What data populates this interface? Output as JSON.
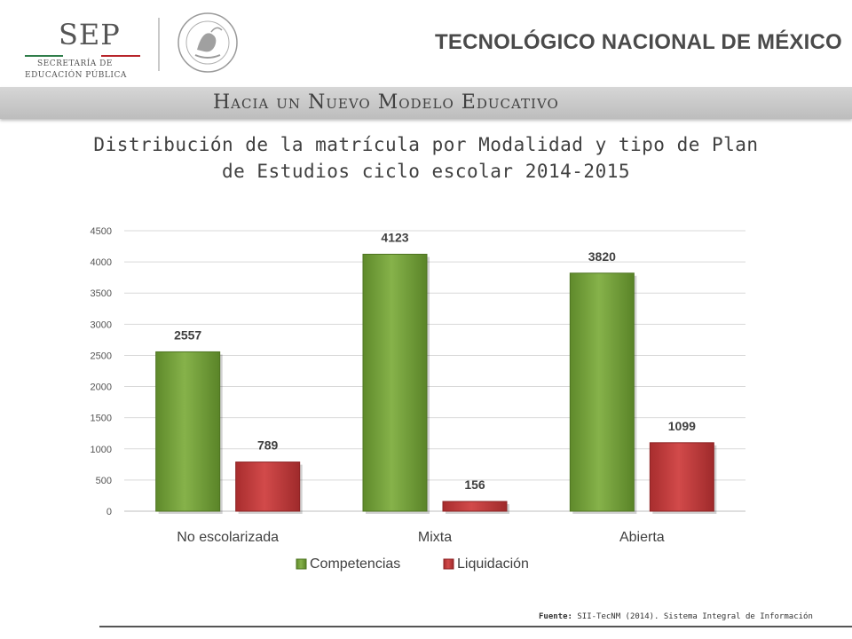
{
  "header": {
    "sep": {
      "word": "SEP",
      "line1": "SECRETARÍA DE",
      "line2": "EDUCACIÓN PÚBLICA"
    },
    "seal_text": "ESTADOS UNIDOS MEXICANOS",
    "institution": "TECNOLÓGICO NACIONAL DE MÉXICO",
    "band": "Hacia un Nuevo Modelo Educativo"
  },
  "title_line1": "Distribución  de la matrícula por Modalidad y tipo de Plan",
  "title_line2": "de Estudios ciclo escolar 2014-2015",
  "colors": {
    "competencias": "#76a13a",
    "liquidacion": "#c0393a",
    "header_text": "#4a4a4a"
  },
  "chart_data": {
    "type": "bar",
    "categories": [
      "No escolarizada",
      "Mixta",
      "Abierta"
    ],
    "series": [
      {
        "name": "Competencias",
        "values": [
          2557,
          4123,
          3820
        ]
      },
      {
        "name": "Liquidación",
        "values": [
          789,
          156,
          1099
        ]
      }
    ],
    "ylim": [
      0,
      4500
    ],
    "yticks": [
      0,
      500,
      1000,
      1500,
      2000,
      2500,
      3000,
      3500,
      4000,
      4500
    ],
    "grid": true,
    "legend_position": "bottom",
    "data_labels": true
  },
  "footer": {
    "source_label": "Fuente:",
    "source_text": "SII-TecNM (2014). Sistema Integral de Información"
  }
}
